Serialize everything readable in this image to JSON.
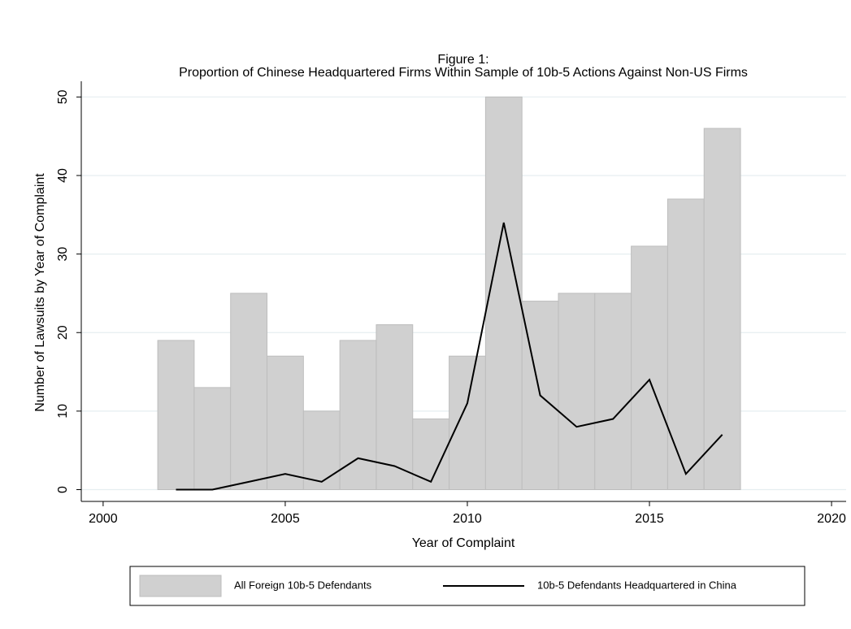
{
  "chart_data": {
    "type": "combo",
    "title": "Figure 1:",
    "subtitle": "Proportion of Chinese Headquartered Firms Within Sample of 10b-5 Actions Against Non-US Firms",
    "x_label": "Year of Complaint",
    "y_label": "Number of Lawsuits by Year of Complaint",
    "x": [
      2002,
      2003,
      2004,
      2005,
      2006,
      2007,
      2008,
      2009,
      2010,
      2011,
      2012,
      2013,
      2014,
      2015,
      2016,
      2017
    ],
    "series": [
      {
        "name": "All Foreign 10b-5 Defendants",
        "type": "bar",
        "color": "#d0d0d0",
        "values": [
          19,
          13,
          25,
          17,
          10,
          19,
          21,
          9,
          17,
          50,
          24,
          25,
          25,
          31,
          37,
          46
        ]
      },
      {
        "name": "10b-5 Defendants Headquartered in China",
        "type": "line",
        "color": "#000000",
        "values": [
          0,
          0,
          1,
          2,
          1,
          4,
          3,
          1,
          11,
          34,
          12,
          8,
          9,
          14,
          2,
          7
        ]
      }
    ],
    "xlim": [
      1999.4,
      2020.4
    ],
    "xticks": [
      2000,
      2005,
      2010,
      2015,
      2020
    ],
    "ylim": [
      -1.5,
      52
    ],
    "yticks": [
      0,
      10,
      20,
      30,
      40,
      50
    ],
    "grid": true,
    "legend": "bottom"
  }
}
